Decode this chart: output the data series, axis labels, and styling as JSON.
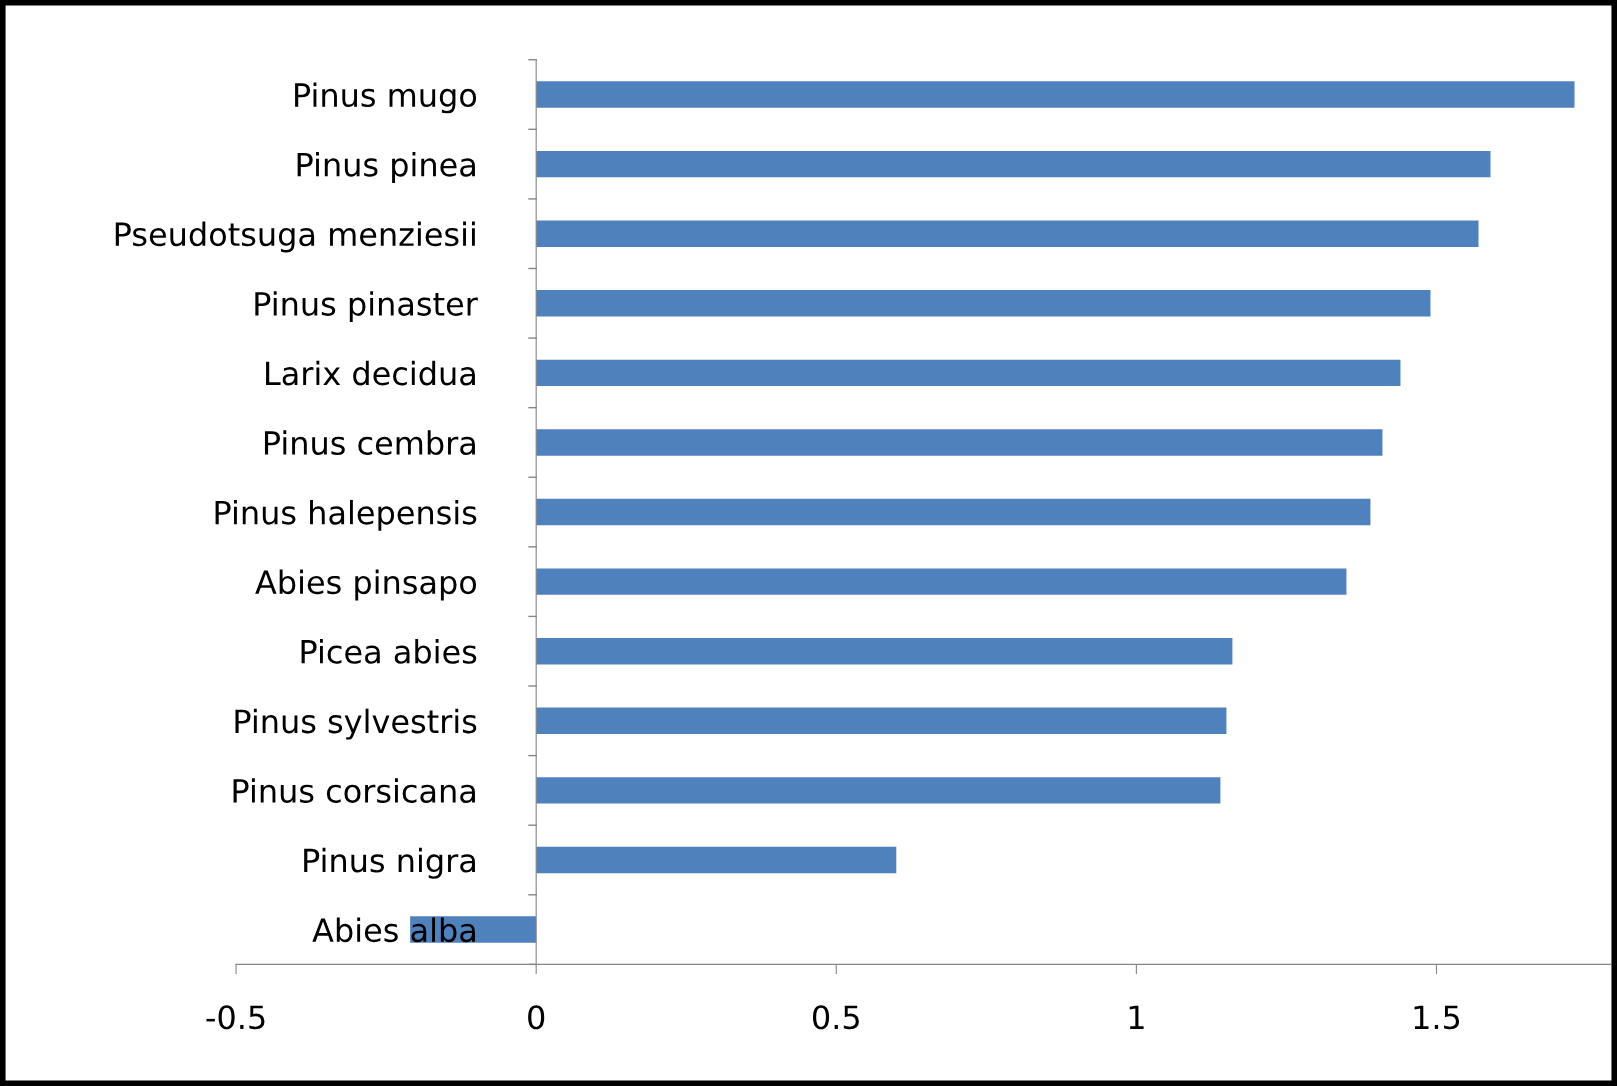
{
  "chart_data": {
    "type": "bar",
    "orientation": "horizontal",
    "categories": [
      "Pinus mugo",
      "Pinus pinea",
      "Pseudotsuga menziesii",
      "Pinus pinaster",
      "Larix decidua",
      "Pinus cembra",
      "Pinus halepensis",
      "Abies pinsapo",
      "Picea abies",
      "Pinus sylvestris",
      "Pinus corsicana",
      "Pinus nigra",
      "Abies alba"
    ],
    "values": [
      1.73,
      1.59,
      1.57,
      1.49,
      1.44,
      1.41,
      1.39,
      1.35,
      1.16,
      1.15,
      1.14,
      0.6,
      -0.21
    ],
    "color": "#4f81bd",
    "xlim": [
      -0.5,
      1.79
    ],
    "xticks": [
      -0.5,
      0,
      0.5,
      1,
      1.5
    ],
    "grid": false,
    "legend": false
  }
}
